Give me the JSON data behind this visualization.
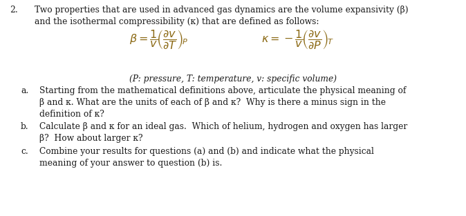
{
  "background_color": "#ffffff",
  "text_color": "#1a1a1a",
  "eq_color": "#8B6914",
  "figsize": [
    6.74,
    3.13
  ],
  "dpi": 100,
  "font_size_main": 8.8,
  "font_size_eq": 11.5,
  "font_size_caption": 8.8,
  "number": "2.",
  "intro_line1": "Two properties that are used in advanced gas dynamics are the volume expansivity (β)",
  "intro_line2": "and the isothermal compressibility (κ) that are defined as follows:",
  "beta_eq": "$\\beta = \\dfrac{1}{v}\\!\\left(\\dfrac{\\partial v}{\\partial T}\\right)_{\\!P}$",
  "kappa_eq": "$\\kappa = -\\dfrac{1}{v}\\!\\left(\\dfrac{\\partial v}{\\partial P}\\right)_{\\!T}$",
  "caption": "(P: pressure, T: temperature, v: specific volume)",
  "label_a": "a.",
  "item_a_line1": "Starting from the mathematical definitions above, articulate the physical meaning of",
  "item_a_line2": "β and κ. What are the units of each of β and κ?  Why is there a minus sign in the",
  "item_a_line3": "definition of κ?",
  "label_b": "b.",
  "item_b_line1": "Calculate β and κ for an ideal gas.  Which of helium, hydrogen and oxygen has larger",
  "item_b_line2": "β?  How about larger κ?",
  "label_c": "c.",
  "item_c_line1": "Combine your results for questions (a) and (b) and indicate what the physical",
  "item_c_line2": "meaning of your answer to question (b) is."
}
